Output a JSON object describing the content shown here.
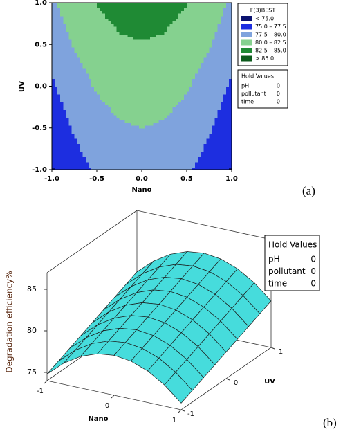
{
  "chart_data": [
    {
      "type": "contour",
      "x_label": "Nano",
      "y_label": "UV",
      "x": [
        -1,
        -0.75,
        -0.5,
        -0.25,
        0,
        0.25,
        0.5,
        0.75,
        1
      ],
      "y": [
        -1,
        -0.75,
        -0.5,
        -0.25,
        0,
        0.25,
        0.5,
        0.75,
        1
      ],
      "z": [
        [
          74.8,
          76.55,
          77.8,
          78.55,
          78.8,
          78.55,
          77.8,
          76.55,
          74.8
        ],
        [
          75.4,
          77.15,
          78.4,
          79.15,
          79.4,
          79.15,
          78.4,
          77.15,
          75.4
        ],
        [
          76,
          77.75,
          79,
          79.75,
          80,
          79.75,
          79,
          77.75,
          76
        ],
        [
          76.6,
          78.35,
          79.6,
          80.35,
          80.6,
          80.35,
          79.6,
          78.35,
          76.6
        ],
        [
          77.2,
          78.95,
          80.2,
          80.95,
          81.2,
          80.95,
          80.2,
          78.95,
          77.2
        ],
        [
          77.8,
          79.55,
          80.8,
          81.55,
          81.8,
          81.55,
          80.8,
          79.55,
          77.8
        ],
        [
          78.4,
          80.15,
          81.4,
          82.15,
          82.4,
          82.15,
          81.4,
          80.15,
          78.4
        ],
        [
          79,
          80.75,
          82,
          82.75,
          83,
          82.75,
          82,
          80.75,
          79
        ],
        [
          79.6,
          81.35,
          82.6,
          83.35,
          83.6,
          83.35,
          82.6,
          81.35,
          79.6
        ]
      ],
      "xlim": [
        -1,
        1
      ],
      "ylim": [
        -1,
        1
      ],
      "xticks": [
        {
          "value": -1,
          "label": "-1.0"
        },
        {
          "value": -0.5,
          "label": "-0.5"
        },
        {
          "value": 0,
          "label": "0.0"
        },
        {
          "value": 0.5,
          "label": "0.5"
        },
        {
          "value": 1,
          "label": "1.0"
        }
      ],
      "yticks": [
        {
          "value": -1,
          "label": "-1.0"
        },
        {
          "value": -0.5,
          "label": "-0.5"
        },
        {
          "value": 0,
          "label": "0.0"
        },
        {
          "value": 0.5,
          "label": "0.5"
        },
        {
          "value": 1,
          "label": "1.0"
        }
      ],
      "levels": [
        75,
        77.5,
        80,
        82.5,
        85
      ],
      "legend": {
        "title": "F(3)BEST",
        "items": [
          {
            "label": "< 75.0",
            "color": "#0b1270"
          },
          {
            "label": "75.0 – 77.5",
            "color": "#1d2ee0"
          },
          {
            "label": "77.5 – 80.0",
            "color": "#7fa3dd"
          },
          {
            "label": "80.0 – 82.5",
            "color": "#85d18f"
          },
          {
            "label": "82.5 – 85.0",
            "color": "#1f8a34"
          },
          {
            "label": "> 85.0",
            "color": "#0c5a1c"
          }
        ]
      },
      "hold_values": {
        "title": "Hold Values",
        "rows": [
          {
            "name": "pH",
            "value": 0
          },
          {
            "name": "pollutant",
            "value": 0
          },
          {
            "name": "time",
            "value": 0
          }
        ]
      },
      "panel_label": "(a)"
    },
    {
      "type": "surface",
      "x_label": "Nano",
      "y_label": "UV",
      "z_label": "Degradation efficiency%",
      "x": [
        -1,
        -0.75,
        -0.5,
        -0.25,
        0,
        0.25,
        0.5,
        0.75,
        1
      ],
      "y": [
        -1,
        -0.75,
        -0.5,
        -0.25,
        0,
        0.25,
        0.5,
        0.75,
        1
      ],
      "z": [
        [
          74.8,
          76.55,
          77.8,
          78.55,
          78.8,
          78.55,
          77.8,
          76.55,
          74.8
        ],
        [
          75.4,
          77.15,
          78.4,
          79.15,
          79.4,
          79.15,
          78.4,
          77.15,
          75.4
        ],
        [
          76,
          77.75,
          79,
          79.75,
          80,
          79.75,
          79,
          77.75,
          76
        ],
        [
          76.6,
          78.35,
          79.6,
          80.35,
          80.6,
          80.35,
          79.6,
          78.35,
          76.6
        ],
        [
          77.2,
          78.95,
          80.2,
          80.95,
          81.2,
          80.95,
          80.2,
          78.95,
          77.2
        ],
        [
          77.8,
          79.55,
          80.8,
          81.55,
          81.8,
          81.55,
          80.8,
          79.55,
          77.8
        ],
        [
          78.4,
          80.15,
          81.4,
          82.15,
          82.4,
          82.15,
          81.4,
          80.15,
          78.4
        ],
        [
          79,
          80.75,
          82,
          82.75,
          83,
          82.75,
          82,
          80.75,
          79
        ],
        [
          79.6,
          81.35,
          82.6,
          83.35,
          83.6,
          83.35,
          82.6,
          81.35,
          79.6
        ]
      ],
      "xlim": [
        -1,
        1
      ],
      "ylim": [
        -1,
        1
      ],
      "zlim": [
        74,
        87
      ],
      "xticks": [
        -1,
        0,
        1
      ],
      "yticks": [
        -1,
        0,
        1
      ],
      "zticks": [
        75,
        80,
        85
      ],
      "color": "#46dcdc",
      "hold_values": {
        "title": "Hold Values",
        "rows": [
          {
            "name": "pH",
            "value": 0
          },
          {
            "name": "pollutant",
            "value": 0
          },
          {
            "name": "time",
            "value": 0
          }
        ]
      },
      "panel_label": "(b)"
    }
  ]
}
